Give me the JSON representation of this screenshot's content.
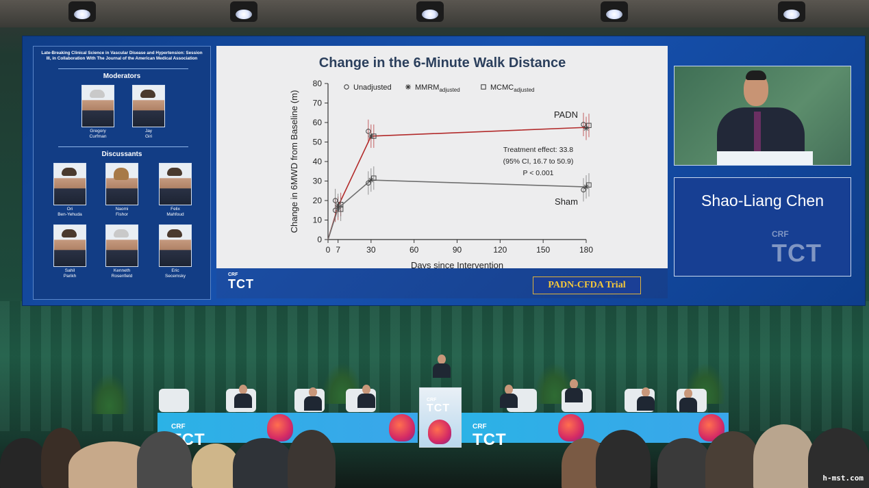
{
  "session": {
    "title": "Late-Breaking Clinical Science in Vascular Disease and Hypertension: Session III, in Collaboration With The Journal of the American Medical Association",
    "moderators_heading": "Moderators",
    "discussants_heading": "Discussants",
    "moderators": [
      {
        "name": "Gregory\nCurfman"
      },
      {
        "name": "Jay\nGiri"
      }
    ],
    "discussants": [
      {
        "name": "Ori\nBen-Yehuda"
      },
      {
        "name": "Naomi\nFishor"
      },
      {
        "name": "Felix\nMahfoud"
      },
      {
        "name": "Sahil\nParikh"
      },
      {
        "name": "Kenneth\nRosenfield"
      },
      {
        "name": "Eric\nSecemsky"
      }
    ]
  },
  "slide": {
    "trial_badge": "PADN-CFDA Trial",
    "logo_crf": "CRF",
    "logo_tct": "TCT"
  },
  "speaker": {
    "name": "Shao-Liang Chen",
    "logo_crf": "CRF",
    "logo_tct": "TCT"
  },
  "stage": {
    "banner_crf": "CRF",
    "banner_tct": "TCT",
    "podium_crf": "CRF",
    "podium_tct": "TCT"
  },
  "watermark": "h-mst.com",
  "colors": {
    "padn": "#b22a2a",
    "sham": "#6f6f6f",
    "slide_bg": "#ededee",
    "screen_blue": "#1752b0",
    "badge_text": "#f5c83a"
  },
  "chart_data": {
    "type": "line",
    "title": "Change in the 6-Minute Walk Distance",
    "xlabel": "Days since Intervention",
    "ylabel": "Change in 6MWD from Baseline (m)",
    "xlim": [
      0,
      180
    ],
    "ylim": [
      0,
      80
    ],
    "xticks": [
      0,
      7,
      30,
      60,
      90,
      120,
      150,
      180
    ],
    "yticks": [
      0,
      10,
      20,
      30,
      40,
      50,
      60,
      70,
      80
    ],
    "legend": [
      {
        "marker": "circle",
        "label": "Unadjusted",
        "sub": ""
      },
      {
        "marker": "asterisk",
        "label": "MMRM",
        "sub": "adjusted"
      },
      {
        "marker": "square",
        "label": "MCMC",
        "sub": "adjusted"
      }
    ],
    "legend_position": "top-left",
    "grid": false,
    "series": [
      {
        "name": "PADN",
        "x": [
          0,
          7,
          30,
          180
        ],
        "y": [
          0,
          17,
          53,
          57.5
        ],
        "unadjusted": [
          0,
          15,
          55.5,
          59
        ],
        "mmrm": [
          0,
          16,
          53,
          57
        ],
        "mcmc": [
          0,
          18,
          53,
          58.5
        ]
      },
      {
        "name": "Sham",
        "x": [
          0,
          7,
          30,
          180
        ],
        "y": [
          0,
          16,
          30.5,
          27
        ],
        "unadjusted": [
          0,
          20,
          29,
          25.5
        ],
        "mmrm": [
          0,
          17.5,
          30.5,
          27
        ],
        "mcmc": [
          0,
          15.5,
          31.5,
          28
        ]
      }
    ],
    "annotations": [
      "Treatment effect: 33.8",
      "(95% CI, 16.7 to 50.9)",
      "P < 0.001"
    ]
  }
}
